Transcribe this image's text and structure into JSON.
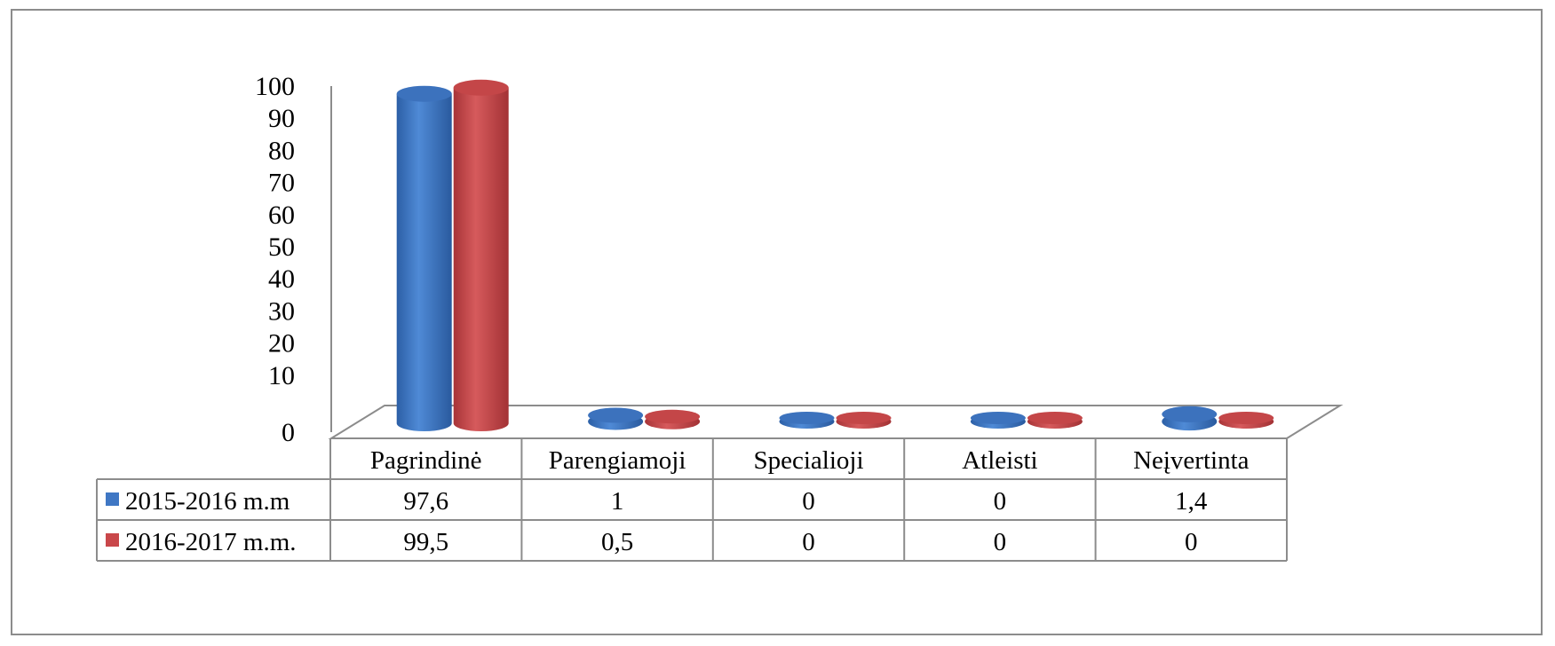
{
  "chart_data": {
    "type": "bar",
    "style": "3d-cylinder",
    "categories": [
      "Pagrindinė",
      "Parengiamoji",
      "Specialioji",
      "Atleisti",
      "Neįvertinta"
    ],
    "series": [
      {
        "name": "2015-2016 m.m",
        "values": [
          97.6,
          1,
          0,
          0,
          1.4
        ],
        "labels": [
          "97,6",
          "1",
          "0",
          "0",
          "1,4"
        ],
        "color": "#3F77C4"
      },
      {
        "name": "2016-2017 m.m.",
        "values": [
          99.5,
          0.5,
          0,
          0,
          0
        ],
        "labels": [
          "99,5",
          "0,5",
          "0",
          "0",
          "0"
        ],
        "color": "#C9474A"
      }
    ],
    "ylim": [
      0,
      100
    ],
    "yticks": [
      0,
      10,
      20,
      30,
      40,
      50,
      60,
      70,
      80,
      90,
      100
    ],
    "grid": false,
    "legend": "data-table"
  }
}
